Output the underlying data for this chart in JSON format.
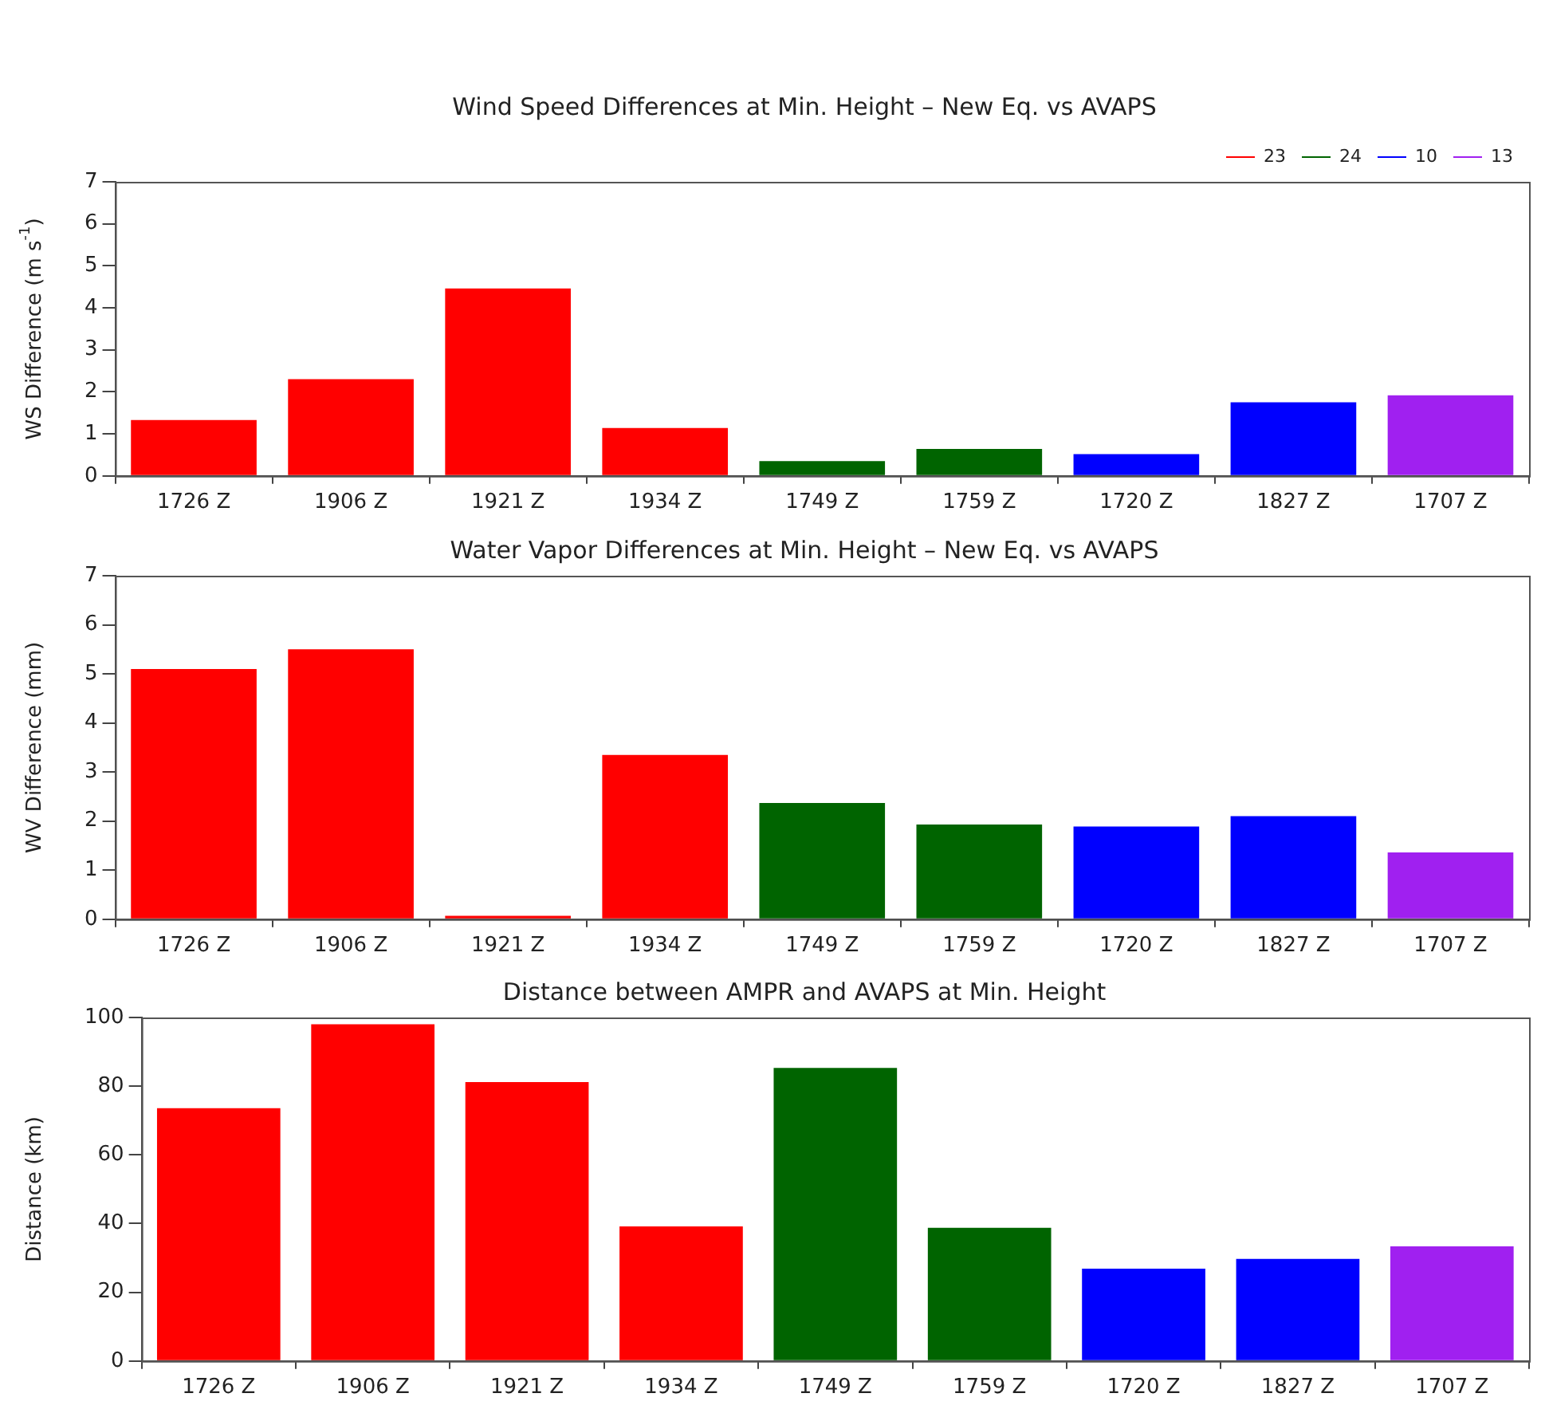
{
  "chart_data": [
    {
      "type": "bar",
      "title": "Wind Speed Differences at Min. Height – New Eq. vs AVAPS",
      "ylabel": "WS Difference (m s$^{-1}$)",
      "categories": [
        "1726 Z",
        "1906 Z",
        "1921 Z",
        "1934 Z",
        "1749 Z",
        "1759 Z",
        "1720 Z",
        "1827 Z",
        "1707 Z"
      ],
      "series": [
        {
          "name": "23",
          "color": "#ff0000",
          "values": [
            1.33,
            2.3,
            4.46,
            1.14,
            null,
            null,
            null,
            null,
            null
          ]
        },
        {
          "name": "24",
          "color": "#006400",
          "values": [
            null,
            null,
            null,
            null,
            0.35,
            0.64,
            null,
            null,
            null
          ]
        },
        {
          "name": "10",
          "color": "#0000ff",
          "values": [
            null,
            null,
            null,
            null,
            null,
            null,
            0.52,
            1.75,
            null
          ]
        },
        {
          "name": "13",
          "color": "#a020f0",
          "values": [
            null,
            null,
            null,
            null,
            null,
            null,
            null,
            null,
            1.92
          ]
        }
      ],
      "ylim": [
        0,
        7
      ],
      "yticks": [
        0,
        1,
        2,
        3,
        4,
        5,
        6,
        7
      ],
      "legend": "top right"
    },
    {
      "type": "bar",
      "title": "Water Vapor Differences at Min. Height – New Eq. vs AVAPS",
      "ylabel": "WV Difference (mm)",
      "categories": [
        "1726 Z",
        "1906 Z",
        "1921 Z",
        "1934 Z",
        "1749 Z",
        "1759 Z",
        "1720 Z",
        "1827 Z",
        "1707 Z"
      ],
      "series": [
        {
          "color": "#ff0000",
          "values": [
            5.1,
            5.5,
            0.07,
            3.35,
            null,
            null,
            null,
            null,
            null
          ]
        },
        {
          "color": "#006400",
          "values": [
            null,
            null,
            null,
            null,
            2.37,
            1.93,
            null,
            null,
            null
          ]
        },
        {
          "color": "#0000ff",
          "values": [
            null,
            null,
            null,
            null,
            null,
            null,
            1.89,
            2.1,
            null
          ]
        },
        {
          "color": "#a020f0",
          "values": [
            null,
            null,
            null,
            null,
            null,
            null,
            null,
            null,
            1.36
          ]
        }
      ],
      "ylim": [
        0,
        7
      ],
      "yticks": [
        0,
        1,
        2,
        3,
        4,
        5,
        6,
        7
      ]
    },
    {
      "type": "bar",
      "title": "Distance between AMPR and AVAPS at Min. Height",
      "ylabel": "Distance (km)",
      "categories": [
        "1726 Z",
        "1906 Z",
        "1921 Z",
        "1934 Z",
        "1749 Z",
        "1759 Z",
        "1720 Z",
        "1827 Z",
        "1707 Z"
      ],
      "series": [
        {
          "color": "#ff0000",
          "values": [
            73.6,
            98,
            81.2,
            39.2,
            null,
            null,
            null,
            null,
            null
          ]
        },
        {
          "color": "#006400",
          "values": [
            null,
            null,
            null,
            null,
            85.3,
            38.8,
            null,
            null,
            null
          ]
        },
        {
          "color": "#0000ff",
          "values": [
            null,
            null,
            null,
            null,
            null,
            null,
            26.9,
            29.7,
            null
          ]
        },
        {
          "color": "#a020f0",
          "values": [
            null,
            null,
            null,
            null,
            null,
            null,
            null,
            null,
            33.4
          ]
        }
      ],
      "ylim": [
        0,
        100
      ],
      "yticks": [
        0,
        20,
        40,
        60,
        80,
        100
      ]
    }
  ]
}
